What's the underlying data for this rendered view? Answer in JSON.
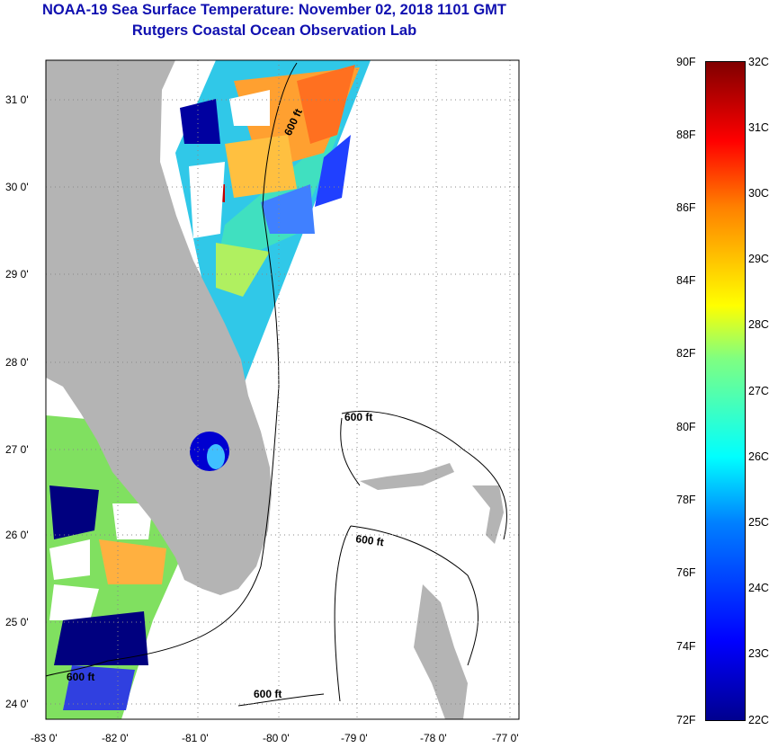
{
  "title": {
    "line1": "NOAA-19 Sea Surface Temperature:  November 02, 2018 1101 GMT",
    "line2": "Rutgers Coastal Ocean Observation Lab"
  },
  "map": {
    "lon_labels": [
      "-83 0'",
      "-82 0'",
      "-81 0'",
      "-80 0'",
      "-79 0'",
      "-78 0'",
      "-77 0'"
    ],
    "lat_labels": [
      "31 0'",
      "30 0'",
      "29 0'",
      "28 0'",
      "27 0'",
      "26 0'",
      "25 0'",
      "24 0'"
    ],
    "contour_label": "600 ft",
    "colors": {
      "land": "#b4b4b4",
      "ocean_nodata": "#ffffff",
      "grid": "#888888"
    }
  },
  "colorbar": {
    "f_labels": [
      "90F",
      "88F",
      "86F",
      "84F",
      "82F",
      "80F",
      "78F",
      "76F",
      "74F",
      "72F"
    ],
    "c_labels": [
      "32C",
      "31C",
      "30C",
      "29C",
      "28C",
      "27C",
      "26C",
      "25C",
      "24C",
      "23C",
      "22C"
    ],
    "range_f": [
      72,
      90
    ],
    "range_c": [
      22,
      32
    ]
  }
}
